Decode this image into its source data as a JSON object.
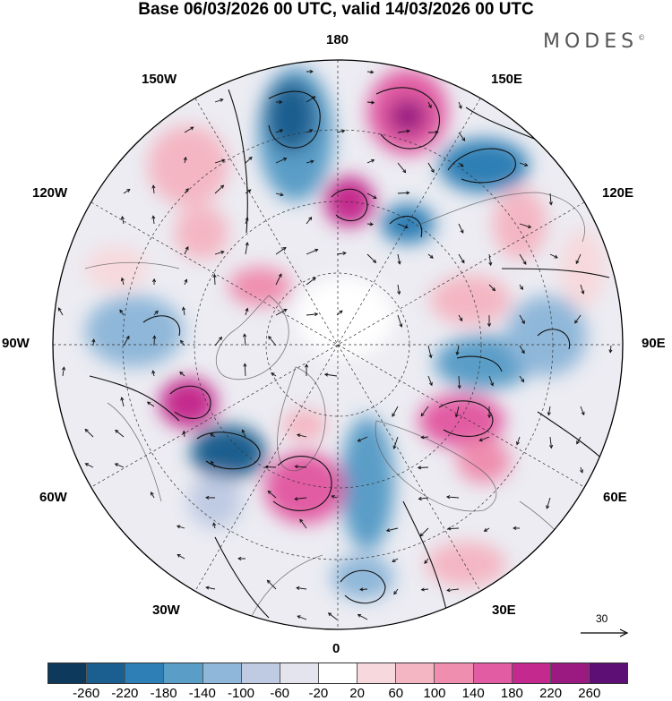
{
  "title": "Base 06/03/2026 00 UTC, valid 14/03/2026 00 UTC",
  "logo": "MODES",
  "logo_mark": "©",
  "longitude_labels": {
    "top": "180",
    "bottom": "0",
    "left": "90W",
    "right": "90E",
    "upper_left_1": "150W",
    "upper_left_2": "120W",
    "upper_right_1": "150E",
    "upper_right_2": "120E",
    "lower_left_1": "60W",
    "lower_left_2": "30W",
    "lower_right_1": "60E",
    "lower_right_2": "30E"
  },
  "reference_vector": "30",
  "colorbar": {
    "colors": [
      "#0d3a5c",
      "#1a5f8f",
      "#2e7fb5",
      "#5a9dc7",
      "#8fb7d9",
      "#bfcbe3",
      "#e4e4ee",
      "#ffffff",
      "#f7d9dd",
      "#f4b6c3",
      "#ef8eaf",
      "#e25ca3",
      "#c42a8d",
      "#9a1a82",
      "#5e0f75"
    ],
    "ticks": [
      "-260",
      "-220",
      "-180",
      "-140",
      "-100",
      "-60",
      "-20",
      "20",
      "60",
      "100",
      "140",
      "180",
      "220",
      "260"
    ]
  },
  "anomaly_centers": [
    {
      "label": "positive",
      "color": "#c42a8d"
    },
    {
      "label": "negative",
      "color": "#1a5f8f"
    }
  ]
}
